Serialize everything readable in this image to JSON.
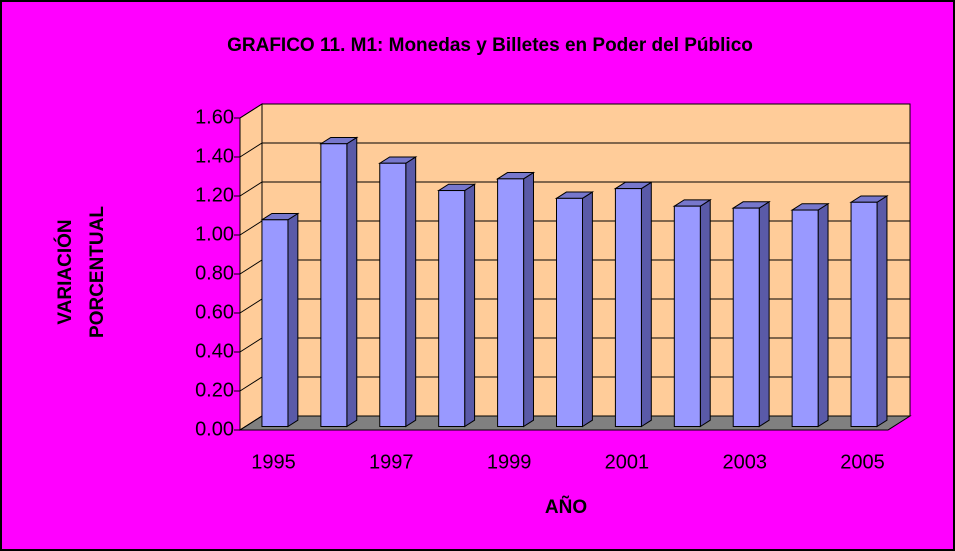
{
  "chart_data": {
    "type": "bar3d",
    "title": "GRAFICO 11. M1: Monedas y Billetes en Poder del Público",
    "xlabel": "AÑO",
    "ylabel": [
      "VARIACIÓN",
      "PORCENTUAL"
    ],
    "categories": [
      "1995",
      null,
      "1997",
      null,
      "1999",
      null,
      "2001",
      null,
      "2003",
      null,
      "2005"
    ],
    "values": [
      1.06,
      1.45,
      1.35,
      1.21,
      1.27,
      1.17,
      1.22,
      1.13,
      1.12,
      1.11,
      1.15
    ],
    "color": "#9999ff",
    "ylim": [
      0,
      1.6
    ],
    "yticks": [
      {
        "value": 0,
        "label": "0.00"
      },
      {
        "value": 0.2,
        "label": "0.20"
      },
      {
        "value": 0.4,
        "label": "0.40"
      },
      {
        "value": 0.6,
        "label": "0.60"
      },
      {
        "value": 0.8,
        "label": "0.80"
      },
      {
        "value": 1,
        "label": "1.00"
      },
      {
        "value": 1.2,
        "label": "1.20"
      },
      {
        "value": 1.4,
        "label": "1.40"
      },
      {
        "value": 1.6,
        "label": "1.60"
      }
    ],
    "grid": true
  }
}
